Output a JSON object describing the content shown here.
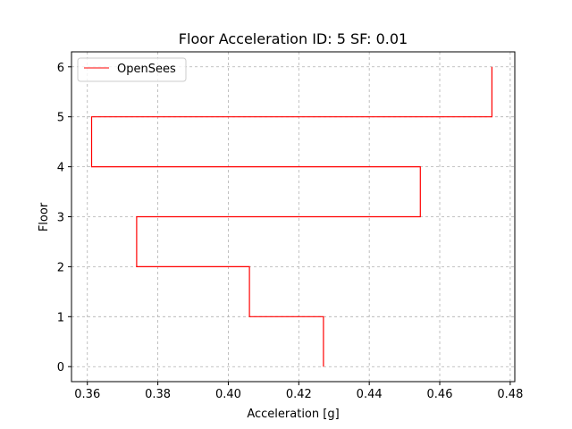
{
  "chart_data": {
    "type": "line",
    "title": "Floor Acceleration ID: 5  SF: 0.01",
    "xlabel": "Acceleration [g]",
    "ylabel": "Floor",
    "xlim": [
      0.3555,
      0.4813
    ],
    "ylim": [
      -0.3,
      6.3
    ],
    "xticks": [
      0.36,
      0.38,
      0.4,
      0.42,
      0.44,
      0.46,
      0.48
    ],
    "xtick_labels": [
      "0.36",
      "0.38",
      "0.40",
      "0.42",
      "0.44",
      "0.46",
      "0.48"
    ],
    "yticks": [
      0,
      1,
      2,
      3,
      4,
      5,
      6
    ],
    "ytick_labels": [
      "0",
      "1",
      "2",
      "3",
      "4",
      "5",
      "6"
    ],
    "grid": true,
    "legend_position": "top-left",
    "series": [
      {
        "name": "OpenSees",
        "color": "#ff0000",
        "style": "step",
        "x": [
          0.427,
          0.427,
          0.406,
          0.406,
          0.374,
          0.374,
          0.4545,
          0.4545,
          0.3612,
          0.3612,
          0.4748,
          0.4748
        ],
        "y": [
          0,
          1,
          1,
          2,
          2,
          3,
          3,
          4,
          4,
          5,
          5,
          6
        ]
      }
    ]
  }
}
